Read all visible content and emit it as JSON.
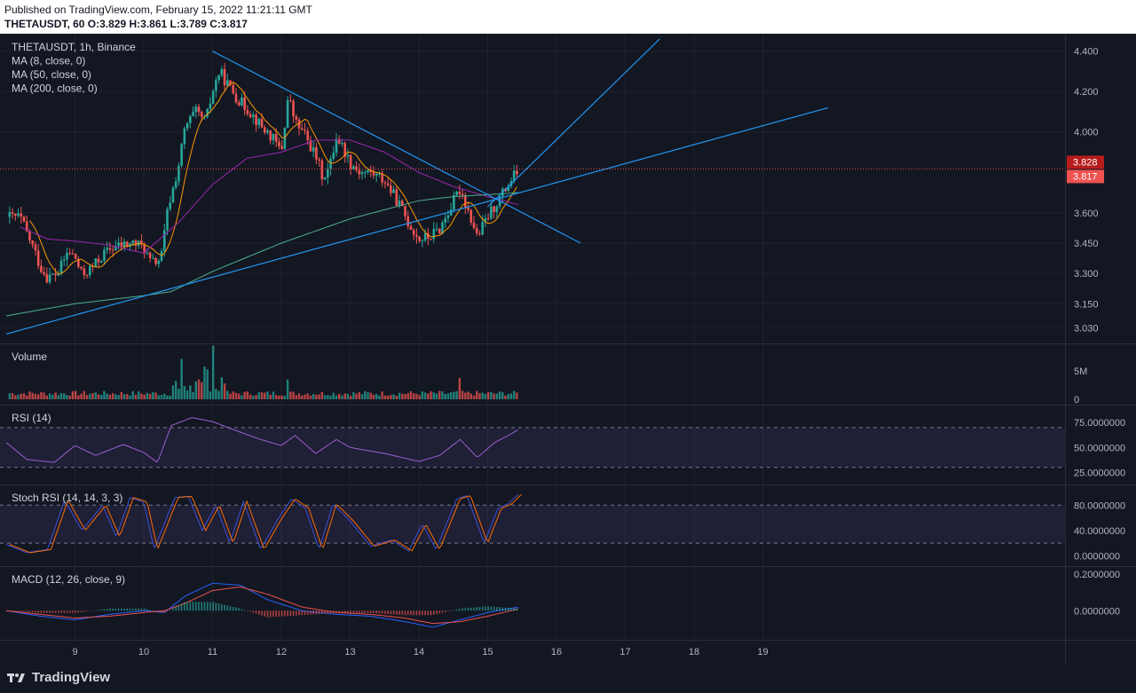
{
  "header": {
    "published": "Published on TradingView.com, February 15, 2022 11:21:11 GMT",
    "ohlc": "THETAUSDT, 60 O:3.829 H:3.861 L:3.789 C:3.817"
  },
  "brand": {
    "name": "TradingView"
  },
  "colors": {
    "background": "#131722",
    "grid": "#1e222d",
    "text": "#b2b5be",
    "up": "#26a69a",
    "down": "#ef5350",
    "ma8": "#ff9800",
    "ma50": "#9c27b0",
    "ma200": "#4caf90",
    "trend": "#2196f3",
    "price_line": "#ef5350",
    "rsi_fill": "#7e57c2"
  },
  "chart_data": [
    {
      "panel": "price",
      "type": "candlestick",
      "legend": [
        "THETAUSDT, 1h, Binance",
        "MA (8, close, 0)",
        "MA (50, close, 0)",
        "MA (200, close, 0)"
      ],
      "x_ticks": [
        "9",
        "10",
        "11",
        "12",
        "13",
        "14",
        "15",
        "16",
        "17",
        "18",
        "19"
      ],
      "y_ticks": [
        "4.400",
        "4.200",
        "4.000",
        "3.600",
        "3.450",
        "3.300",
        "3.150",
        "3.030"
      ],
      "ylim": [
        2.98,
        4.46
      ],
      "price_labels": [
        "3.828",
        "3.817"
      ],
      "close_key": [
        [
          8.2,
          3.58
        ],
        [
          8.3,
          3.5
        ],
        [
          8.4,
          3.42
        ],
        [
          8.5,
          3.33
        ],
        [
          8.6,
          3.28
        ],
        [
          8.75,
          3.3
        ],
        [
          8.9,
          3.41
        ],
        [
          9.0,
          3.38
        ],
        [
          9.1,
          3.29
        ],
        [
          9.25,
          3.33
        ],
        [
          9.4,
          3.39
        ],
        [
          9.55,
          3.43
        ],
        [
          9.7,
          3.44
        ],
        [
          9.85,
          3.45
        ],
        [
          10.0,
          3.43
        ],
        [
          10.1,
          3.35
        ],
        [
          10.25,
          3.37
        ],
        [
          10.35,
          3.62
        ],
        [
          10.5,
          3.82
        ],
        [
          10.6,
          4.02
        ],
        [
          10.75,
          4.1
        ],
        [
          10.9,
          4.05
        ],
        [
          11.0,
          4.2
        ],
        [
          11.1,
          4.3
        ],
        [
          11.25,
          4.22
        ],
        [
          11.4,
          4.15
        ],
        [
          11.55,
          4.1
        ],
        [
          11.7,
          4.03
        ],
        [
          11.85,
          3.98
        ],
        [
          12.0,
          3.9
        ],
        [
          12.1,
          4.18
        ],
        [
          12.2,
          4.05
        ],
        [
          12.35,
          3.98
        ],
        [
          12.5,
          3.88
        ],
        [
          12.6,
          3.78
        ],
        [
          12.7,
          3.82
        ],
        [
          12.8,
          3.98
        ],
        [
          12.9,
          3.92
        ],
        [
          13.0,
          3.85
        ],
        [
          13.15,
          3.8
        ],
        [
          13.3,
          3.8
        ],
        [
          13.5,
          3.76
        ],
        [
          13.7,
          3.65
        ],
        [
          13.85,
          3.55
        ],
        [
          14.0,
          3.47
        ],
        [
          14.15,
          3.48
        ],
        [
          14.3,
          3.52
        ],
        [
          14.45,
          3.62
        ],
        [
          14.6,
          3.72
        ],
        [
          14.75,
          3.58
        ],
        [
          14.85,
          3.48
        ],
        [
          15.0,
          3.58
        ],
        [
          15.15,
          3.66
        ],
        [
          15.3,
          3.74
        ],
        [
          15.45,
          3.817
        ]
      ],
      "ma50_key": [
        [
          8.2,
          3.53
        ],
        [
          8.6,
          3.47
        ],
        [
          9.0,
          3.46
        ],
        [
          9.5,
          3.44
        ],
        [
          10.0,
          3.4
        ],
        [
          10.5,
          3.55
        ],
        [
          11.0,
          3.74
        ],
        [
          11.5,
          3.87
        ],
        [
          12.0,
          3.9
        ],
        [
          12.5,
          3.96
        ],
        [
          13.0,
          3.96
        ],
        [
          13.5,
          3.9
        ],
        [
          14.0,
          3.8
        ],
        [
          14.5,
          3.73
        ],
        [
          15.0,
          3.68
        ],
        [
          15.45,
          3.64
        ]
      ],
      "ma200_key": [
        [
          8.0,
          3.09
        ],
        [
          9.0,
          3.15
        ],
        [
          10.0,
          3.19
        ],
        [
          10.4,
          3.21
        ],
        [
          11.0,
          3.31
        ],
        [
          12.0,
          3.45
        ],
        [
          13.0,
          3.57
        ],
        [
          14.0,
          3.66
        ],
        [
          14.5,
          3.68
        ],
        [
          15.0,
          3.69
        ],
        [
          15.45,
          3.7
        ]
      ],
      "trendlines": [
        [
          [
            11.0,
            4.4
          ],
          [
            16.35,
            3.45
          ]
        ],
        [
          [
            8.0,
            3.0
          ],
          [
            19.95,
            4.12
          ]
        ],
        [
          [
            15.0,
            3.63
          ],
          [
            17.5,
            4.46
          ]
        ]
      ]
    },
    {
      "panel": "volume",
      "type": "bar",
      "legend": "Volume",
      "y_ticks": [
        "5M",
        "0"
      ],
      "peaks": [
        [
          10.55,
          6.2
        ],
        [
          11.0,
          8.0
        ],
        [
          10.9,
          4.6
        ],
        [
          12.1,
          3.5
        ],
        [
          14.6,
          3.8
        ],
        [
          11.15,
          2.6
        ]
      ]
    },
    {
      "panel": "rsi",
      "type": "line",
      "legend": "RSI (14)",
      "y_ticks": [
        "75.0000000",
        "50.0000000",
        "25.0000000"
      ],
      "bands": [
        70,
        30
      ],
      "ylim": [
        20,
        85
      ],
      "key": [
        [
          8.0,
          55
        ],
        [
          8.3,
          38
        ],
        [
          8.7,
          35
        ],
        [
          9.0,
          52
        ],
        [
          9.3,
          42
        ],
        [
          9.7,
          53
        ],
        [
          10.0,
          45
        ],
        [
          10.2,
          35
        ],
        [
          10.4,
          72
        ],
        [
          10.7,
          80
        ],
        [
          11.0,
          76
        ],
        [
          11.3,
          68
        ],
        [
          11.7,
          58
        ],
        [
          12.0,
          52
        ],
        [
          12.2,
          62
        ],
        [
          12.5,
          44
        ],
        [
          12.8,
          58
        ],
        [
          13.0,
          50
        ],
        [
          13.5,
          44
        ],
        [
          14.0,
          36
        ],
        [
          14.3,
          42
        ],
        [
          14.6,
          58
        ],
        [
          14.85,
          40
        ],
        [
          15.1,
          55
        ],
        [
          15.3,
          62
        ],
        [
          15.45,
          68
        ]
      ]
    },
    {
      "panel": "stoch_rsi",
      "type": "line",
      "legend": "Stoch RSI (14, 14, 3, 3)",
      "y_ticks": [
        "80.0000000",
        "40.0000000",
        "0.0000000"
      ],
      "bands": [
        80,
        20
      ],
      "ylim": [
        -5,
        100
      ],
      "key": [
        [
          8.0,
          18
        ],
        [
          8.3,
          5
        ],
        [
          8.6,
          10
        ],
        [
          8.85,
          88
        ],
        [
          9.1,
          40
        ],
        [
          9.4,
          80
        ],
        [
          9.6,
          30
        ],
        [
          9.8,
          92
        ],
        [
          10.0,
          85
        ],
        [
          10.15,
          10
        ],
        [
          10.45,
          92
        ],
        [
          10.65,
          94
        ],
        [
          10.85,
          40
        ],
        [
          11.05,
          80
        ],
        [
          11.25,
          20
        ],
        [
          11.45,
          86
        ],
        [
          11.7,
          10
        ],
        [
          11.95,
          58
        ],
        [
          12.15,
          90
        ],
        [
          12.35,
          75
        ],
        [
          12.55,
          10
        ],
        [
          12.75,
          82
        ],
        [
          13.0,
          55
        ],
        [
          13.3,
          15
        ],
        [
          13.6,
          25
        ],
        [
          13.85,
          8
        ],
        [
          14.05,
          50
        ],
        [
          14.25,
          10
        ],
        [
          14.55,
          90
        ],
        [
          14.7,
          95
        ],
        [
          14.95,
          20
        ],
        [
          15.15,
          75
        ],
        [
          15.3,
          82
        ],
        [
          15.45,
          98
        ]
      ]
    },
    {
      "panel": "macd",
      "type": "line",
      "legend": "MACD (12, 26, close, 9)",
      "y_ticks": [
        "0.2000000",
        "0.0000000"
      ],
      "ylim": [
        -0.12,
        0.2
      ],
      "macd_key": [
        [
          8.0,
          0.0
        ],
        [
          8.5,
          -0.03
        ],
        [
          9.0,
          -0.05
        ],
        [
          9.5,
          -0.02
        ],
        [
          10.0,
          0.0
        ],
        [
          10.3,
          -0.01
        ],
        [
          10.6,
          0.08
        ],
        [
          11.0,
          0.15
        ],
        [
          11.4,
          0.14
        ],
        [
          11.8,
          0.06
        ],
        [
          12.3,
          0.0
        ],
        [
          12.8,
          -0.02
        ],
        [
          13.3,
          -0.03
        ],
        [
          13.8,
          -0.06
        ],
        [
          14.2,
          -0.09
        ],
        [
          14.6,
          -0.05
        ],
        [
          15.0,
          -0.01
        ],
        [
          15.45,
          0.02
        ]
      ],
      "signal_key": [
        [
          8.0,
          0.0
        ],
        [
          8.5,
          -0.02
        ],
        [
          9.0,
          -0.04
        ],
        [
          9.5,
          -0.03
        ],
        [
          10.0,
          -0.01
        ],
        [
          10.3,
          0.0
        ],
        [
          10.6,
          0.04
        ],
        [
          11.0,
          0.11
        ],
        [
          11.4,
          0.13
        ],
        [
          11.8,
          0.09
        ],
        [
          12.3,
          0.02
        ],
        [
          12.8,
          -0.01
        ],
        [
          13.3,
          -0.02
        ],
        [
          13.8,
          -0.04
        ],
        [
          14.2,
          -0.07
        ],
        [
          14.6,
          -0.06
        ],
        [
          15.0,
          -0.03
        ],
        [
          15.45,
          0.01
        ]
      ]
    }
  ]
}
